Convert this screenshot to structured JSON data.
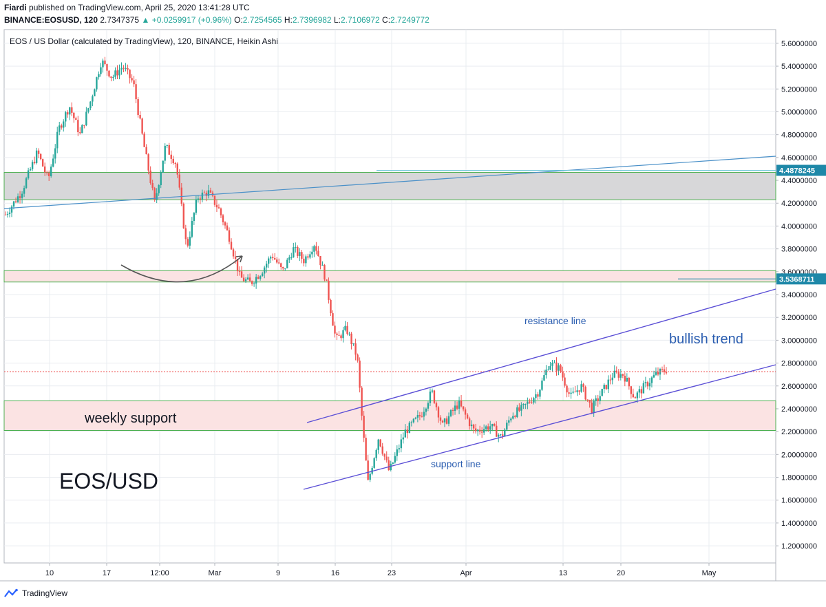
{
  "header": {
    "author": "Fiardi",
    "published_text": "published on TradingView.com, April 25, 2020 13:41:28 UTC",
    "symbol": "BINANCE:EOSUSD, 120",
    "last": "2.7347375",
    "change": "+0.0259917 (+0.96%)",
    "open_label": "O:",
    "open": "2.7254565",
    "high_label": "H:",
    "high": "2.7396982",
    "low_label": "L:",
    "low": "2.7106972",
    "close_label": "C:",
    "close": "2.7249772"
  },
  "footer": {
    "brand": "TradingView"
  },
  "colors": {
    "up": "#26a69a",
    "down": "#ef5350",
    "grid": "#e9ecf0",
    "gray_zone": "#d7d7d9",
    "pink_zone": "#fbe3e3",
    "zone_border": "#4caf50",
    "channel": "#5b4fd6",
    "trendline_blue": "#4a90c8",
    "price_tag": "#1e88a8",
    "dotted": "#ef5350"
  },
  "chart_data": {
    "type": "candlestick",
    "title": "EOS / US Dollar (calculated by TradingView), 120, BINANCE, Heikin Ashi",
    "ylim": [
      1.05,
      5.72
    ],
    "y_ticks": [
      "1.2000000",
      "1.4000000",
      "1.6000000",
      "1.8000000",
      "2.0000000",
      "2.2000000",
      "2.4000000",
      "2.6000000",
      "2.8000000",
      "3.0000000",
      "3.2000000",
      "3.4000000",
      "3.6000000",
      "3.8000000",
      "4.0000000",
      "4.2000000",
      "4.4000000",
      "4.6000000",
      "4.8000000",
      "5.0000000",
      "5.2000000",
      "5.4000000",
      "5.6000000"
    ],
    "x_ticks": [
      "10",
      "17",
      "12:00",
      "Mar",
      "9",
      "16",
      "23",
      "Apr",
      "13",
      "20",
      "May"
    ],
    "price_tags": [
      {
        "label": "4.4878245",
        "value": 4.4878245
      },
      {
        "label": "3.5368711",
        "value": 3.5368711
      }
    ],
    "current_price": 2.7249772,
    "series_path": [
      [
        0,
        4.1
      ],
      [
        3,
        4.3
      ],
      [
        6,
        4.65
      ],
      [
        8,
        4.4
      ],
      [
        10,
        4.85
      ],
      [
        12,
        5.05
      ],
      [
        14,
        4.8
      ],
      [
        16,
        5.1
      ],
      [
        18,
        5.45
      ],
      [
        20,
        5.3
      ],
      [
        22,
        5.4
      ],
      [
        24,
        5.25
      ],
      [
        26,
        4.7
      ],
      [
        28,
        4.2
      ],
      [
        30,
        4.7
      ],
      [
        32,
        4.55
      ],
      [
        34,
        3.8
      ],
      [
        36,
        4.25
      ],
      [
        38,
        4.3
      ],
      [
        40,
        4.15
      ],
      [
        42,
        3.9
      ],
      [
        44,
        3.55
      ],
      [
        46,
        3.5
      ],
      [
        48,
        3.6
      ],
      [
        50,
        3.75
      ],
      [
        52,
        3.6
      ],
      [
        54,
        3.8
      ],
      [
        56,
        3.7
      ],
      [
        58,
        3.85
      ],
      [
        60,
        3.55
      ],
      [
        62,
        3.0
      ],
      [
        64,
        3.1
      ],
      [
        66,
        2.85
      ],
      [
        67,
        2.25
      ],
      [
        68,
        1.75
      ],
      [
        70,
        2.15
      ],
      [
        72,
        1.85
      ],
      [
        75,
        2.2
      ],
      [
        78,
        2.35
      ],
      [
        80,
        2.55
      ],
      [
        82,
        2.25
      ],
      [
        85,
        2.45
      ],
      [
        88,
        2.2
      ],
      [
        91,
        2.25
      ],
      [
        93,
        2.15
      ],
      [
        95,
        2.35
      ],
      [
        97,
        2.4
      ],
      [
        100,
        2.55
      ],
      [
        102,
        2.8
      ],
      [
        104,
        2.75
      ],
      [
        106,
        2.5
      ],
      [
        108,
        2.6
      ],
      [
        110,
        2.4
      ],
      [
        112,
        2.55
      ],
      [
        114,
        2.7
      ],
      [
        116,
        2.7
      ],
      [
        118,
        2.5
      ],
      [
        120,
        2.6
      ],
      [
        122,
        2.7
      ],
      [
        124,
        2.74
      ]
    ],
    "zones": [
      {
        "name": "gray-resistance-zone",
        "low": 4.23,
        "high": 4.47
      },
      {
        "name": "pink-resistance-zone",
        "low": 3.51,
        "high": 3.61
      },
      {
        "name": "weekly-support-zone",
        "low": 2.21,
        "high": 2.47
      }
    ],
    "annotations": [
      {
        "name": "weekly-support-label",
        "text": "weekly support"
      },
      {
        "name": "resistance-line-label",
        "text": "resistance line"
      },
      {
        "name": "support-line-label",
        "text": "support line"
      },
      {
        "name": "bullish-trend-label",
        "text": "bullish trend"
      },
      {
        "name": "symbol-watermark",
        "text": "EOS/USD"
      }
    ]
  }
}
